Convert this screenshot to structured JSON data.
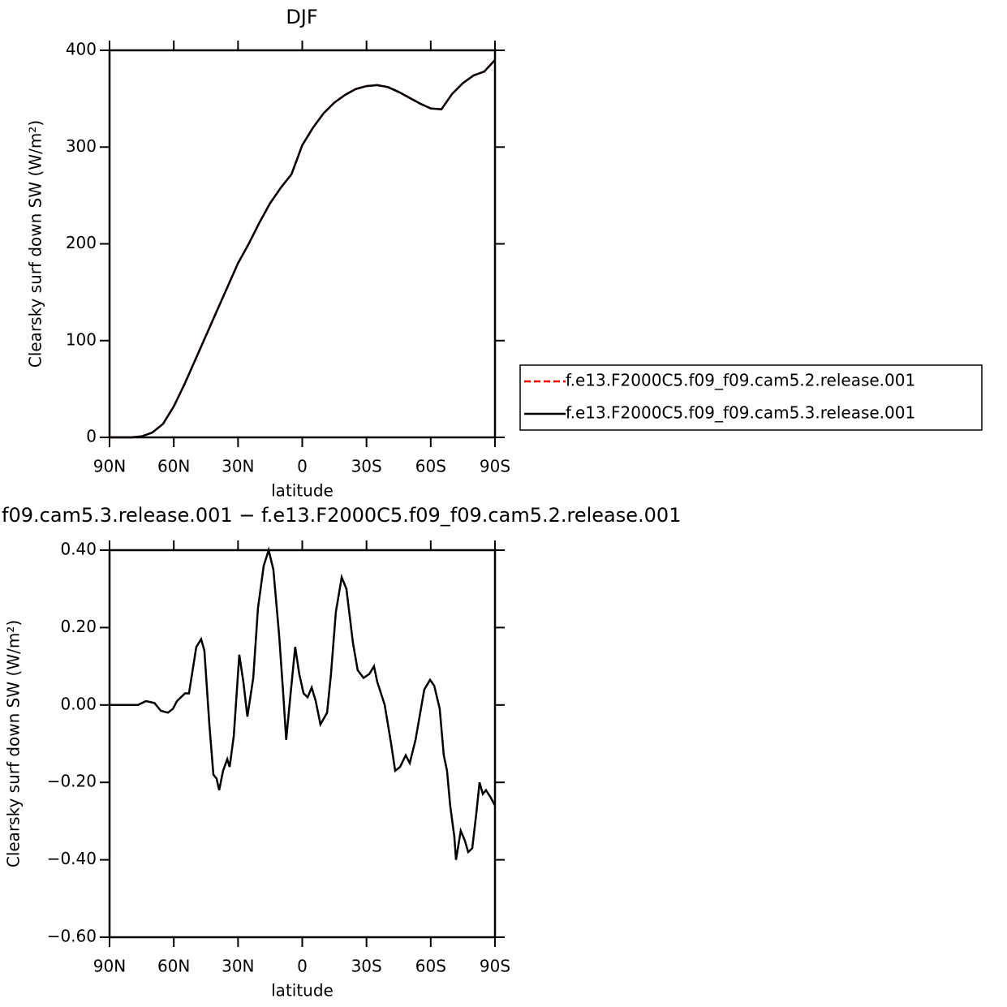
{
  "chart_data": [
    {
      "type": "line",
      "title": "DJF",
      "xlabel": "latitude",
      "ylabel": "Clearsky surf down SW (W/m²)",
      "x": [
        90,
        85,
        80,
        75,
        70,
        65,
        60,
        55,
        50,
        45,
        40,
        35,
        30,
        25,
        20,
        15,
        10,
        5,
        0,
        -5,
        -10,
        -15,
        -20,
        -25,
        -30,
        -35,
        -40,
        -45,
        -50,
        -55,
        -60,
        -65,
        -70,
        -75,
        -80,
        -85,
        -90
      ],
      "series": [
        {
          "name": "f.e13.F2000C5.f09_f09.cam5.2.release.001",
          "color": "#ff0000",
          "dash": true,
          "values": [
            0,
            0,
            0,
            1,
            5,
            14,
            32,
            55,
            80,
            105,
            130,
            155,
            180,
            200,
            222,
            242,
            258,
            272,
            302,
            320,
            335,
            346,
            354,
            360,
            363,
            364,
            362,
            357,
            351,
            345,
            340,
            339,
            355,
            366,
            374,
            378,
            390
          ]
        },
        {
          "name": "f.e13.F2000C5.f09_f09.cam5.3.release.001",
          "color": "#000000",
          "dash": false,
          "values": [
            0,
            0,
            0,
            1,
            5,
            14,
            32,
            55,
            80,
            105,
            130,
            155,
            180,
            200,
            222,
            242,
            258,
            272,
            302,
            320,
            335,
            346,
            354,
            360,
            363,
            364,
            362,
            357,
            351,
            345,
            340,
            339,
            355,
            366,
            374,
            378,
            390
          ]
        }
      ],
      "xlim": [
        90,
        -90
      ],
      "xticks": [
        {
          "value": 90,
          "label": "90N"
        },
        {
          "value": 60,
          "label": "60N"
        },
        {
          "value": 30,
          "label": "30N"
        },
        0,
        {
          "value": -30,
          "label": "30S"
        },
        {
          "value": -60,
          "label": "60S"
        },
        {
          "value": -90,
          "label": "90S"
        }
      ],
      "ylim": [
        0,
        400
      ],
      "yticks": [
        0,
        100,
        200,
        300,
        400
      ],
      "legend": "right"
    },
    {
      "type": "line",
      "title": "f09.cam5.3.release.001 − f.e13.F2000C5.f09_f09.cam5.2.release.001",
      "xlabel": "latitude",
      "ylabel": "Clearsky surf down SW (W/m²)",
      "x": [
        90,
        76.7,
        73,
        69,
        66,
        62.7,
        60.4,
        58.5,
        54.8,
        52.9,
        49.5,
        47.2,
        45.7,
        43.4,
        41.5,
        40,
        38.8,
        37,
        35,
        33.9,
        32,
        29.4,
        27.5,
        25.6,
        22.9,
        20.7,
        18,
        15.7,
        13.5,
        10.8,
        8.9,
        7.5,
        5.6,
        3.3,
        1.4,
        -0.6,
        -2.5,
        -4.4,
        -6.3,
        -8.5,
        -11.6,
        -13.4,
        -15.7,
        -18.4,
        -20.6,
        -23.7,
        -25.9,
        -28.6,
        -31.3,
        -33.5,
        -35,
        -38.5,
        -41.5,
        -43.4,
        -45.7,
        -48.3,
        -50.2,
        -52.9,
        -55.1,
        -57,
        -59.7,
        -61.6,
        -64.2,
        -66.1,
        -67.6,
        -69.1,
        -71,
        -71.8,
        -74,
        -75.9,
        -77.5,
        -79.4,
        -81.3,
        -82.8,
        -84.3,
        -85.8,
        -88.1,
        -90
      ],
      "series": [
        {
          "color": "#000000",
          "dash": false,
          "values": [
            0,
            0,
            0.01,
            0.005,
            -0.015,
            -0.02,
            -0.01,
            0.01,
            0.03,
            0.03,
            0.15,
            0.17,
            0.14,
            -0.05,
            -0.18,
            -0.19,
            -0.22,
            -0.17,
            -0.14,
            -0.16,
            -0.08,
            0.13,
            0.06,
            -0.03,
            0.07,
            0.25,
            0.36,
            0.4,
            0.35,
            0.18,
            0.03,
            -0.09,
            0.02,
            0.15,
            0.08,
            0.03,
            0.02,
            0.045,
            0.01,
            -0.05,
            -0.02,
            0.08,
            0.24,
            0.33,
            0.3,
            0.16,
            0.09,
            0.07,
            0.08,
            0.1,
            0.06,
            0,
            -0.1,
            -0.17,
            -0.16,
            -0.13,
            -0.15,
            -0.09,
            -0.02,
            0.04,
            0.065,
            0.05,
            -0.01,
            -0.13,
            -0.17,
            -0.26,
            -0.34,
            -0.4,
            -0.325,
            -0.35,
            -0.38,
            -0.37,
            -0.28,
            -0.2,
            -0.23,
            -0.22,
            -0.24,
            -0.26
          ]
        }
      ],
      "xlim": [
        90,
        -90
      ],
      "xticks": [
        {
          "value": 90,
          "label": "90N"
        },
        {
          "value": 60,
          "label": "60N"
        },
        {
          "value": 30,
          "label": "30N"
        },
        0,
        {
          "value": -30,
          "label": "30S"
        },
        {
          "value": -60,
          "label": "60S"
        },
        {
          "value": -90,
          "label": "90S"
        }
      ],
      "ylim": [
        -0.6,
        0.4
      ],
      "yticks": [
        {
          "value": -0.6,
          "label": "−0.60"
        },
        {
          "value": -0.4,
          "label": "−0.40"
        },
        {
          "value": -0.2,
          "label": "−0.20"
        },
        {
          "value": 0,
          "label": "0.00"
        },
        {
          "value": 0.2,
          "label": "0.20"
        },
        {
          "value": 0.4,
          "label": "0.40"
        }
      ]
    }
  ]
}
